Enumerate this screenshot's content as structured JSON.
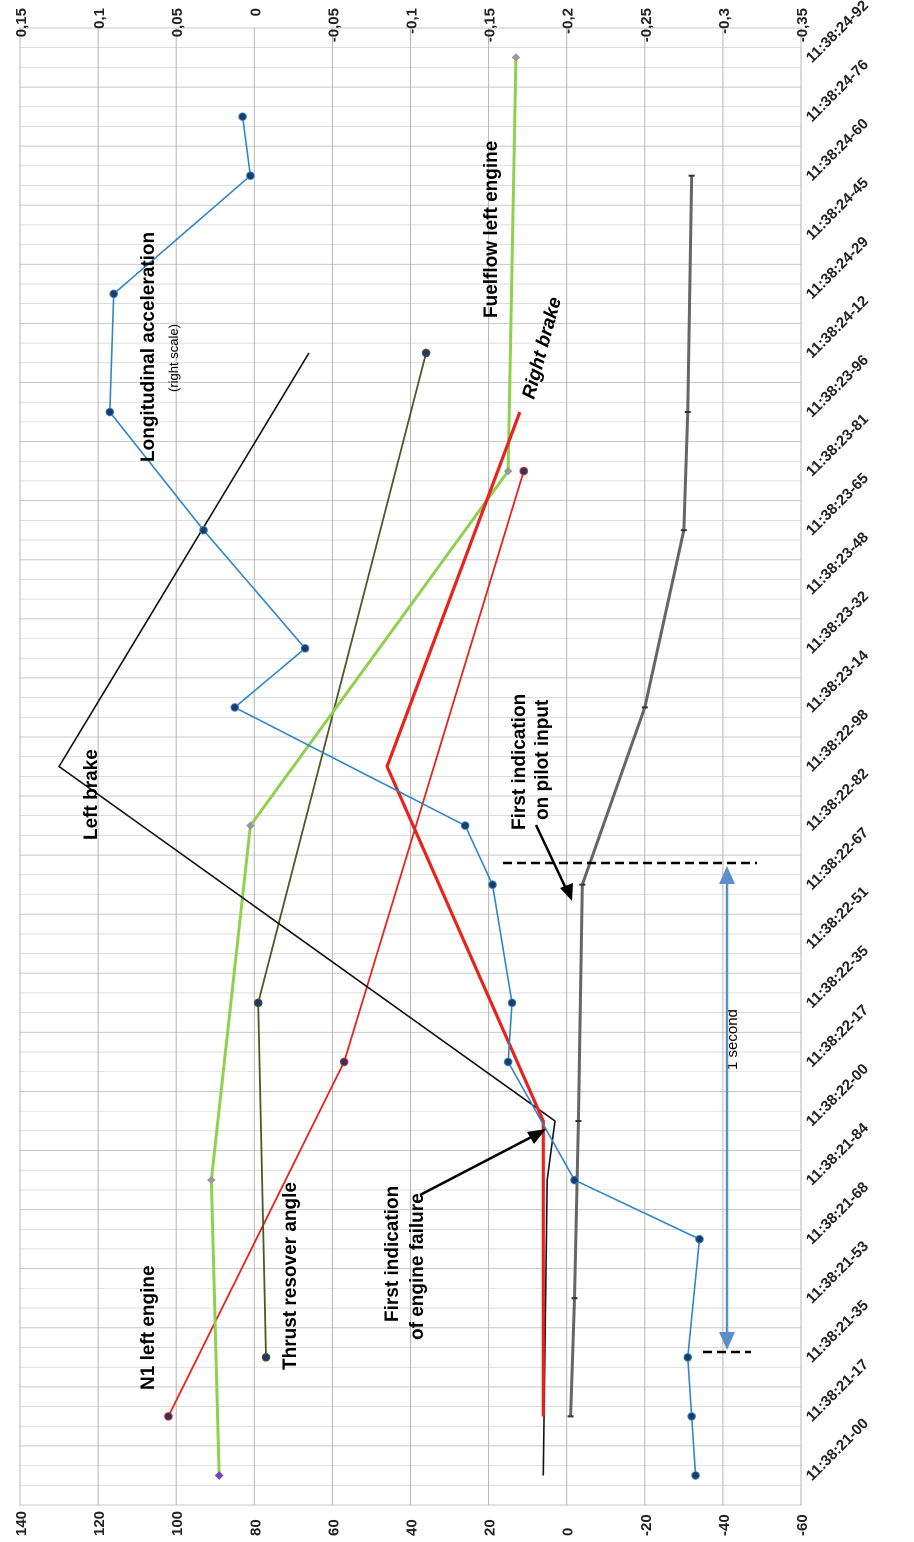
{
  "chart_data": {
    "type": "line",
    "orientation": "rotated-90-clockwise",
    "categories": [
      "11:38:21-00",
      "11:38:21-17",
      "11:38:21-35",
      "11:38:21-53",
      "11:38:21-68",
      "11:38:21-84",
      "11:38:22-00",
      "11:38:22-17",
      "11:38:22-35",
      "11:38:22-51",
      "11:38:22-67",
      "11:38:22-82",
      "11:38:22-98",
      "11:38:23-14",
      "11:38:23-32",
      "11:38:23-48",
      "11:38:23-65",
      "11:38:23-81",
      "11:38:23-96",
      "11:38:24-12",
      "11:38:24-29",
      "11:38:24-45",
      "11:38:24-60",
      "11:38:24-76",
      "11:38:24-92"
    ],
    "left_axis": {
      "ticks": [
        "140",
        "120",
        "100",
        "80",
        "60",
        "40",
        "20",
        "0",
        "-20",
        "-40",
        "-60"
      ],
      "range": [
        -60,
        140
      ]
    },
    "right_axis": {
      "ticks": [
        "0,15",
        "0,1",
        "0,05",
        "0",
        "-0,05",
        "-0,1",
        "-0,15",
        "-0,2",
        "-0,25",
        "-0,3",
        "-0,35"
      ],
      "range": [
        -0.35,
        0.15
      ]
    },
    "grid": "on",
    "series": [
      {
        "name": "N1 left engine",
        "axis": "left",
        "color": "#e8231d",
        "width": 1.8,
        "marker": "circle",
        "x": [
          1,
          7,
          17
        ],
        "values": [
          102,
          57,
          11
        ]
      },
      {
        "name": "Thrust resover angle",
        "axis": "left",
        "color": "#4a5a23",
        "width": 1.8,
        "marker": "circle",
        "x": [
          2,
          8,
          19
        ],
        "values": [
          77,
          79,
          36
        ]
      },
      {
        "name": "Fuelflow left engine",
        "axis": "left",
        "color": "#8fd14f",
        "width": 3,
        "marker": "diamond",
        "x": [
          0,
          5,
          11,
          17,
          24
        ],
        "values": [
          89,
          91,
          81,
          15,
          13
        ]
      },
      {
        "name": "Left brake",
        "axis": "left",
        "color": "#111111",
        "width": 1.6,
        "marker": "none",
        "x": [
          0,
          5,
          6,
          12,
          19,
          19
        ],
        "values": [
          6,
          5,
          3,
          130,
          66,
          66
        ]
      },
      {
        "name": "Right brake",
        "axis": "left",
        "color": "#e8231d",
        "width": 3.2,
        "marker": "none",
        "x": [
          1,
          6,
          12,
          18
        ],
        "values": [
          6,
          6,
          46,
          12
        ]
      },
      {
        "name": "",
        "axis": "left",
        "color": "#666666",
        "width": 3,
        "marker": "dash",
        "x": [
          1,
          3,
          6,
          10,
          13,
          16,
          18,
          22
        ],
        "values": [
          -1,
          -2,
          -3,
          -4,
          -20,
          -30,
          -31,
          -32
        ]
      },
      {
        "name": "Longitudinal acceleration",
        "axis": "left",
        "color": "#2e86c8",
        "width": 1.6,
        "marker": "circle",
        "x": [
          0,
          1,
          2,
          4,
          5,
          7,
          8,
          10,
          11,
          13,
          14,
          16,
          18,
          20,
          22,
          23
        ],
        "values": [
          -33,
          -32,
          -31,
          -34,
          -2,
          15,
          14,
          19,
          26,
          85,
          67,
          93,
          117,
          116,
          81,
          83
        ]
      }
    ],
    "annotations": {
      "n1": "N1 left engine",
      "thrust": "Thrust resover angle",
      "left_brake": "Left brake",
      "long_accel": "Longitudinal acceleration",
      "long_accel_sub": "(right scale)",
      "fuelflow": "Fuelflow left engine",
      "right_brake": "Right brake",
      "failure_1": "First indication",
      "failure_2": "of engine failure",
      "pilot_1": "First indication",
      "pilot_2": "on pilot input",
      "one_second": "1 second"
    }
  }
}
